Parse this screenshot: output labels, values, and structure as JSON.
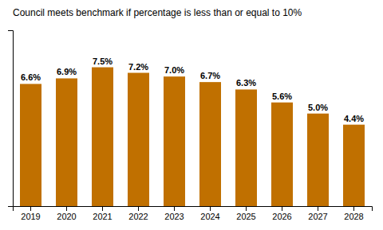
{
  "chart_data": {
    "type": "bar",
    "title": "Council meets benchmark if percentage is less than or equal to 10%",
    "categories": [
      "2019",
      "2020",
      "2021",
      "2022",
      "2023",
      "2024",
      "2025",
      "2026",
      "2027",
      "2028"
    ],
    "values": [
      6.6,
      6.9,
      7.5,
      7.2,
      7.0,
      6.7,
      6.3,
      5.6,
      5.0,
      4.4
    ],
    "value_labels": [
      "6.6%",
      "6.9%",
      "7.5%",
      "7.2%",
      "7.0%",
      "6.7%",
      "6.3%",
      "5.6%",
      "5.0%",
      "4.4%"
    ],
    "data_labels": true,
    "color": "#C07000",
    "ylim": [
      0,
      9.5
    ],
    "grid": false,
    "tick_labels": "x"
  }
}
